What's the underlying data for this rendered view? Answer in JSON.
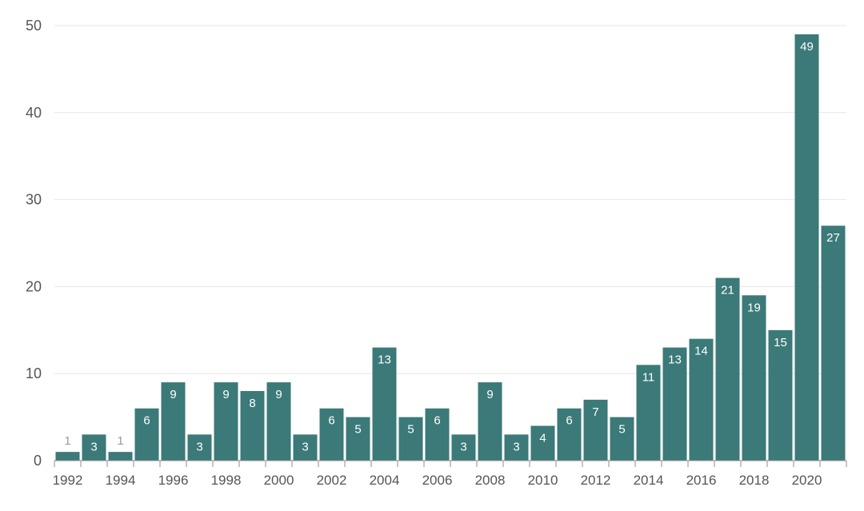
{
  "chart_data": {
    "type": "bar",
    "title": "",
    "xlabel": "",
    "ylabel": "",
    "ylim": [
      0,
      50
    ],
    "y_ticks": [
      0,
      10,
      20,
      30,
      40,
      50
    ],
    "grid": true,
    "categories": [
      "1992",
      "1993",
      "1994",
      "1995",
      "1996",
      "1997",
      "1998",
      "1999",
      "2000",
      "2001",
      "2002",
      "2003",
      "2004",
      "2005",
      "2006",
      "2007",
      "2008",
      "2009",
      "2010",
      "2011",
      "2012",
      "2013",
      "2014",
      "2015",
      "2016",
      "2017",
      "2018",
      "2019",
      "2020",
      "2021"
    ],
    "x_tick_labels": [
      "1992",
      "1994",
      "1996",
      "1998",
      "2000",
      "2002",
      "2004",
      "2006",
      "2008",
      "2010",
      "2012",
      "2014",
      "2016",
      "2018",
      "2020"
    ],
    "values": [
      1,
      3,
      1,
      6,
      9,
      3,
      9,
      8,
      9,
      3,
      6,
      5,
      13,
      5,
      6,
      3,
      9,
      3,
      4,
      6,
      7,
      5,
      11,
      13,
      14,
      21,
      19,
      15,
      49,
      27
    ],
    "bar_color": "#3b7a78",
    "label_color_inside": "#ffffff",
    "label_color_outside": "#9a9a9a"
  }
}
